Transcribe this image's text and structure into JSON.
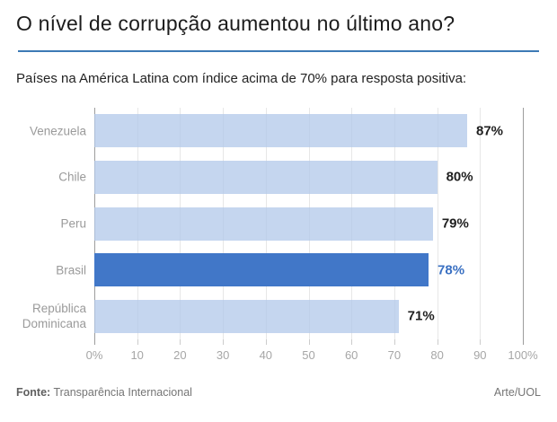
{
  "header": {
    "title": "O nível de corrupção aumentou no último ano?",
    "subtitle": "Países na América Latina com índice acima de 70% para resposta positiva:"
  },
  "chart_data": {
    "type": "bar",
    "orientation": "horizontal",
    "title": "O nível de corrupção aumentou no último ano?",
    "subtitle": "Países na América Latina com índice acima de 70% para resposta positiva:",
    "categories": [
      "Venezuela",
      "Chile",
      "Peru",
      "Brasil",
      "República Dominicana"
    ],
    "values": [
      87,
      80,
      79,
      78,
      71
    ],
    "value_labels": [
      "87%",
      "80%",
      "79%",
      "78%",
      "71%"
    ],
    "highlight_index": 3,
    "highlight_category": "Brasil",
    "xlim": [
      0,
      100
    ],
    "x_ticks": [
      {
        "value": 0,
        "label": "0%"
      },
      {
        "value": 10,
        "label": "10"
      },
      {
        "value": 20,
        "label": "20"
      },
      {
        "value": 30,
        "label": "30"
      },
      {
        "value": 40,
        "label": "40"
      },
      {
        "value": 50,
        "label": "50"
      },
      {
        "value": 60,
        "label": "60"
      },
      {
        "value": 70,
        "label": "70"
      },
      {
        "value": 80,
        "label": "80"
      },
      {
        "value": 90,
        "label": "90"
      },
      {
        "value": 100,
        "label": "100%"
      }
    ],
    "grid": true,
    "legend": false,
    "colors": {
      "bar": "#c9d8ef",
      "highlight_bar": "#4177c8",
      "value_label": "#1f1f1f",
      "highlight_value_label": "#3a70c2",
      "gridline": "#e7e7e7",
      "axis_line": "#9d9d9d"
    }
  },
  "footer": {
    "source_label": "Fonte:",
    "source_text": "Transparência Internacional",
    "credit": "Arte/UOL"
  },
  "theme": {
    "accent_rule_color": "#3d7ab5"
  }
}
